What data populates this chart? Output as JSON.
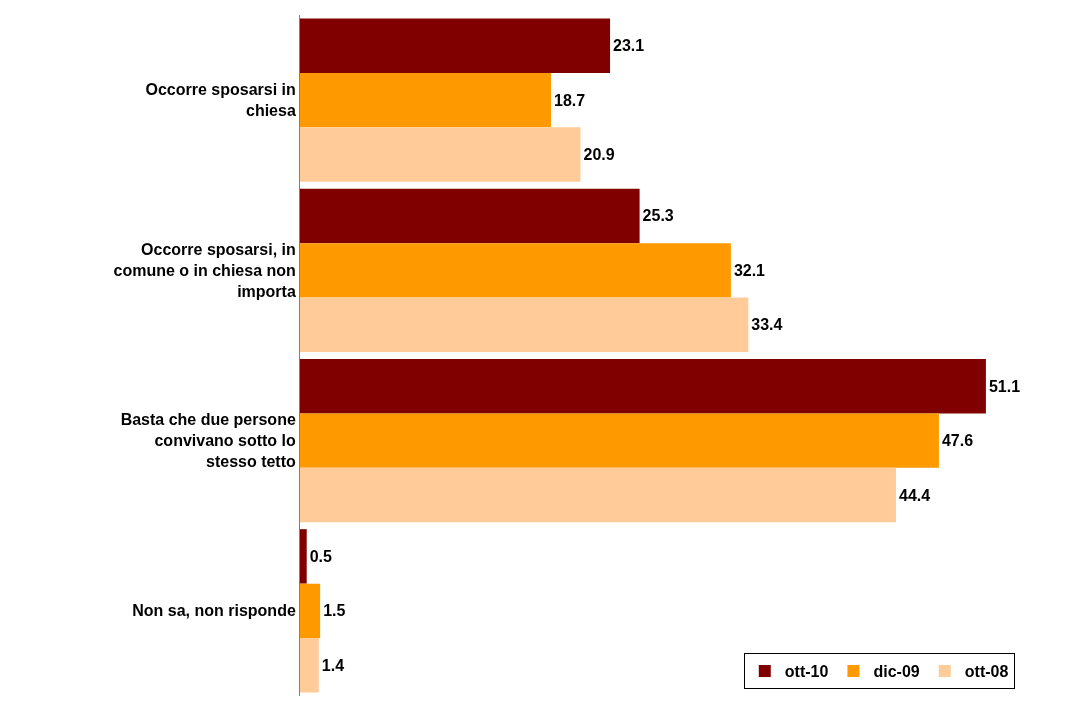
{
  "chart_data": {
    "type": "bar",
    "orientation": "horizontal",
    "categories": [
      "Occorre sposarsi in chiesa",
      "Occorre sposarsi, in comune o in chiesa non importa",
      "Basta che due persone convivano sotto lo stesso tetto",
      "Non sa, non risponde"
    ],
    "series": [
      {
        "name": "ott-10",
        "color": "#800000",
        "values": [
          23.1,
          25.3,
          51.1,
          0.5
        ]
      },
      {
        "name": "dic-09",
        "color": "#ff9900",
        "values": [
          18.7,
          32.1,
          47.6,
          1.5
        ]
      },
      {
        "name": "ott-08",
        "color": "#ffcc99",
        "values": [
          20.9,
          33.4,
          44.4,
          1.4
        ]
      }
    ],
    "tick_labels": "y",
    "data_labels": true,
    "legend": "bottom right"
  }
}
